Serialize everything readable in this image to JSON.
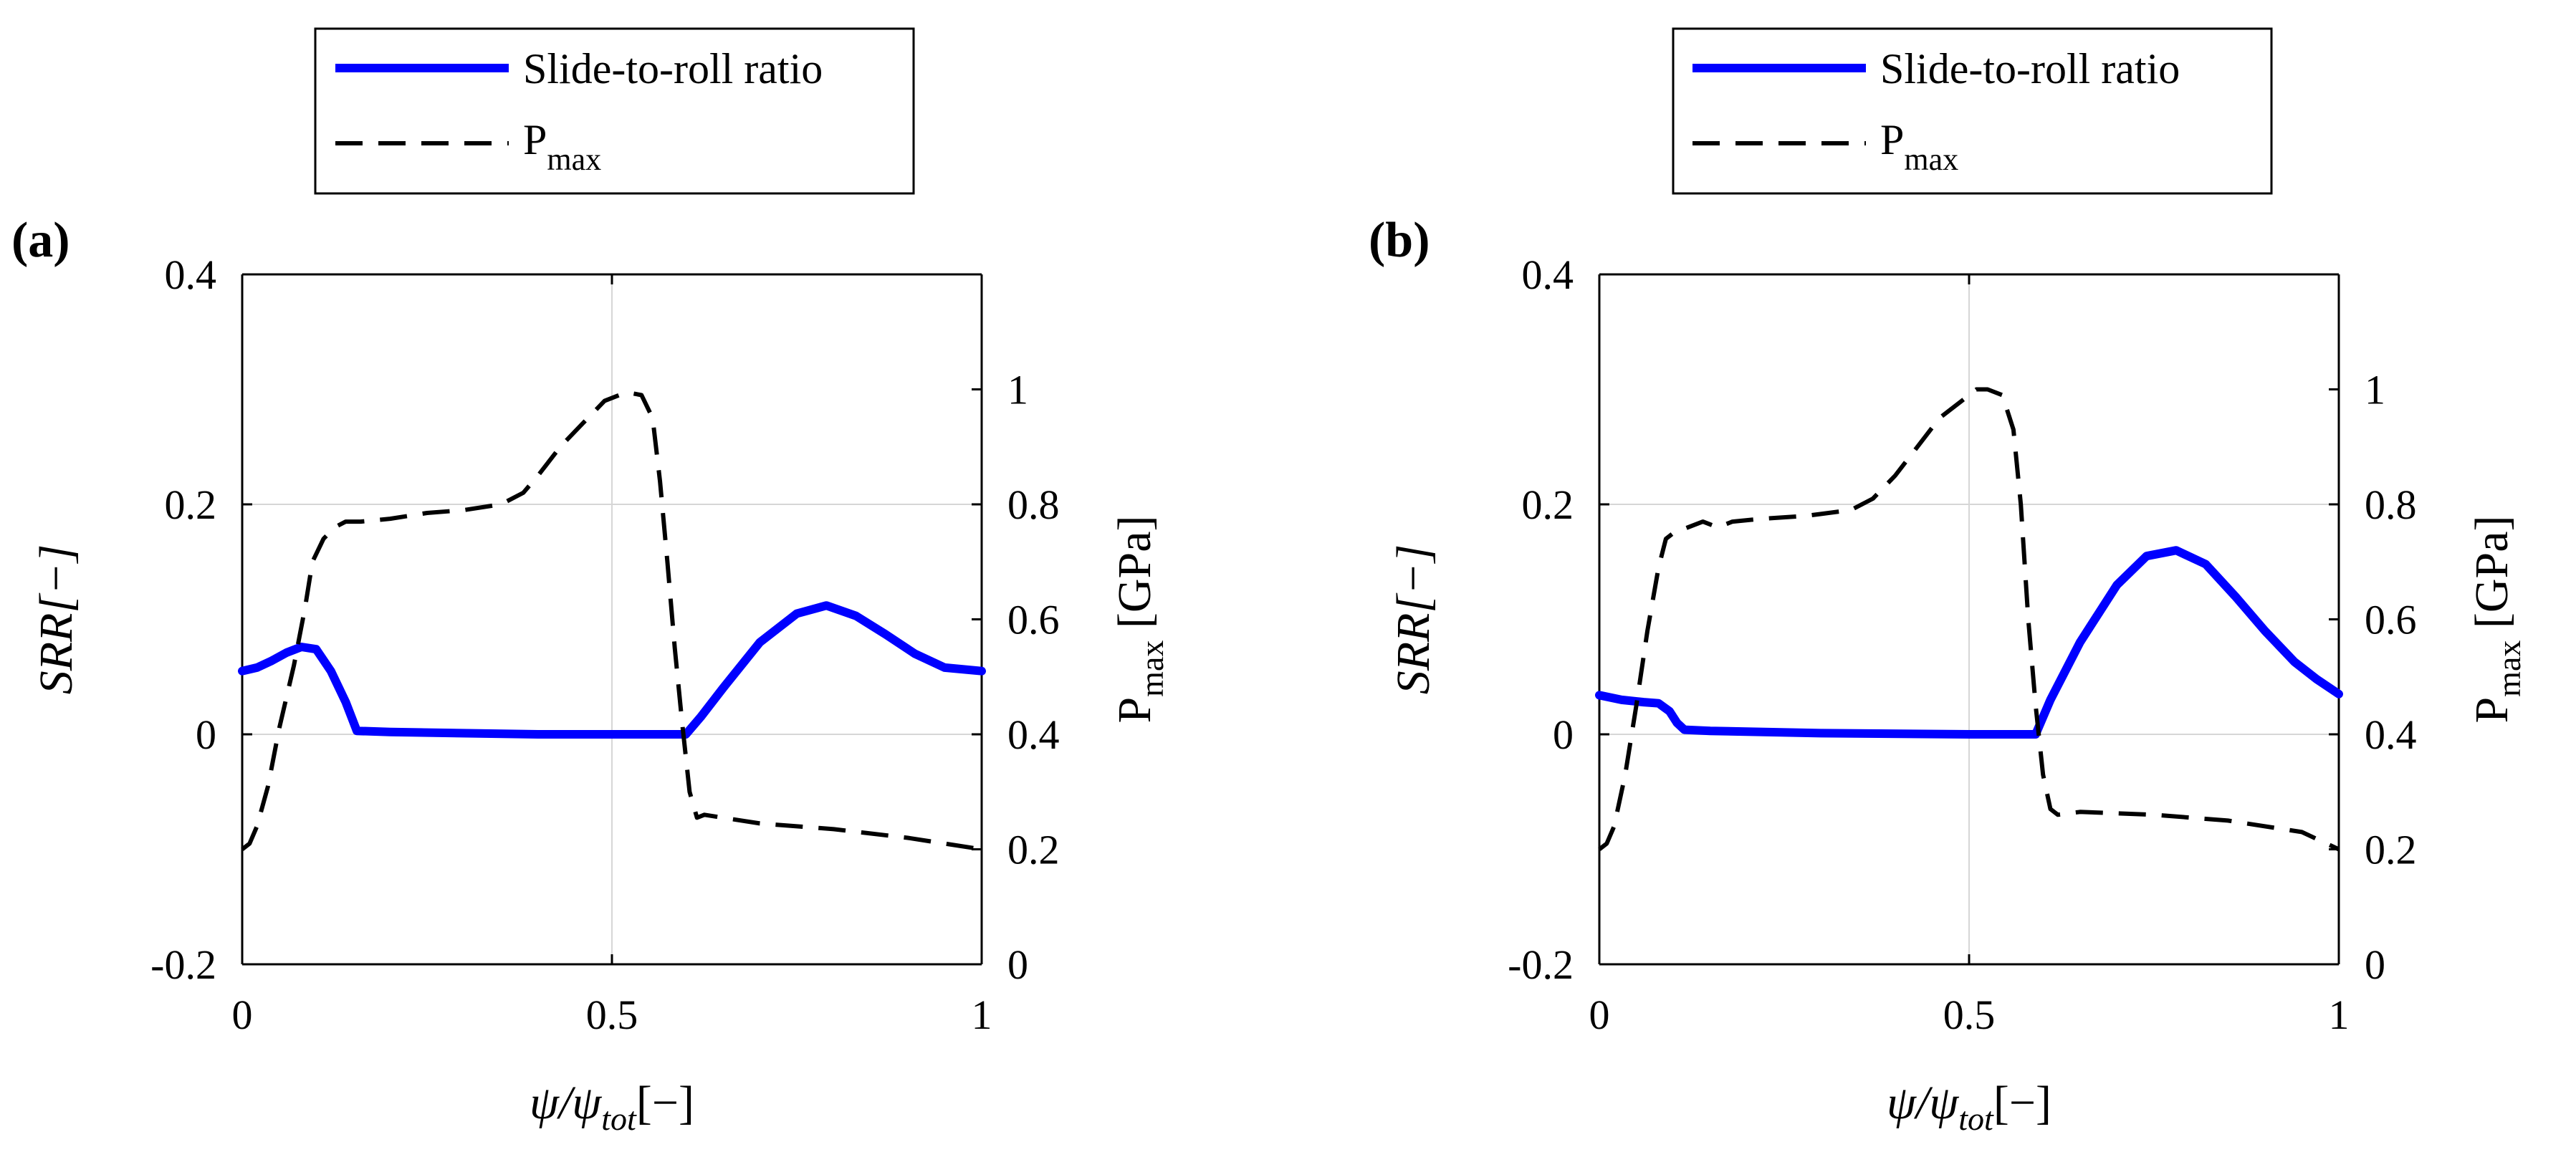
{
  "figure": {
    "legend": {
      "entries": [
        {
          "name": "Slide-to-roll ratio",
          "color": "#0000ff",
          "style": "solid"
        },
        {
          "name_main": "P",
          "name_sub": "max",
          "color": "#000000",
          "style": "dashed"
        }
      ]
    }
  },
  "chart_data": [
    {
      "type": "line",
      "panel_label": "(a)",
      "xlabel": {
        "main": "ψ/ψ",
        "sub": "tot",
        "suffix": "[−]"
      },
      "ylabel_left": "SRR[−]",
      "ylabel_right": {
        "main": "P",
        "sub": "max",
        "suffix": " [GPa]"
      },
      "xlim": [
        0,
        1
      ],
      "ylim_left": [
        -0.2,
        0.4
      ],
      "ylim_right": [
        0,
        1.2
      ],
      "x_ticks": [
        0,
        0.5,
        1
      ],
      "x_tick_labels": [
        "0",
        "0.5",
        "1"
      ],
      "y_left_ticks": [
        -0.2,
        0,
        0.2,
        0.4
      ],
      "y_left_tick_labels": [
        "-0.2",
        "0",
        "0.2",
        "0.4"
      ],
      "y_right_ticks": [
        0,
        0.2,
        0.4,
        0.6,
        0.8,
        1
      ],
      "y_right_tick_labels": [
        "0",
        "0.2",
        "0.4",
        "0.6",
        "0.8",
        "1"
      ],
      "grid": true,
      "series": [
        {
          "name": "Slide-to-roll ratio",
          "axis": "left",
          "color": "#0000ff",
          "x": [
            0,
            0.02,
            0.04,
            0.06,
            0.08,
            0.1,
            0.12,
            0.14,
            0.155,
            0.2,
            0.4,
            0.6,
            0.62,
            0.65,
            0.7,
            0.75,
            0.79,
            0.83,
            0.87,
            0.91,
            0.95,
            1.0
          ],
          "y": [
            0.055,
            0.058,
            0.064,
            0.071,
            0.076,
            0.074,
            0.055,
            0.028,
            0.003,
            0.002,
            0.0,
            0.0,
            0.015,
            0.04,
            0.08,
            0.105,
            0.112,
            0.103,
            0.087,
            0.07,
            0.058,
            0.055
          ]
        },
        {
          "name": "P_max",
          "axis": "right",
          "color": "#000000",
          "x": [
            0,
            0.01,
            0.02,
            0.035,
            0.05,
            0.07,
            0.085,
            0.095,
            0.11,
            0.125,
            0.14,
            0.16,
            0.2,
            0.25,
            0.3,
            0.35,
            0.38,
            0.4,
            0.43,
            0.46,
            0.49,
            0.51,
            0.52,
            0.54,
            0.555,
            0.565,
            0.575,
            0.585,
            0.595,
            0.605,
            0.615,
            0.625,
            0.65,
            0.7,
            0.8,
            0.9,
            1.0
          ],
          "y": [
            0.2,
            0.21,
            0.24,
            0.31,
            0.41,
            0.52,
            0.62,
            0.7,
            0.74,
            0.76,
            0.77,
            0.77,
            0.775,
            0.785,
            0.79,
            0.8,
            0.82,
            0.85,
            0.9,
            0.94,
            0.98,
            0.99,
            0.995,
            0.99,
            0.95,
            0.84,
            0.7,
            0.55,
            0.42,
            0.3,
            0.255,
            0.26,
            0.255,
            0.245,
            0.235,
            0.22,
            0.2
          ]
        }
      ]
    },
    {
      "type": "line",
      "panel_label": "(b)",
      "xlabel": {
        "main": "ψ/ψ",
        "sub": "tot",
        "suffix": "[−]"
      },
      "ylabel_left": "SRR[−]",
      "ylabel_right": {
        "main": "P",
        "sub": "max",
        "suffix": " [GPa]"
      },
      "xlim": [
        0,
        1
      ],
      "ylim_left": [
        -0.2,
        0.4
      ],
      "ylim_right": [
        0,
        1.2
      ],
      "x_ticks": [
        0,
        0.5,
        1
      ],
      "x_tick_labels": [
        "0",
        "0.5",
        "1"
      ],
      "y_left_ticks": [
        -0.2,
        0,
        0.2,
        0.4
      ],
      "y_left_tick_labels": [
        "-0.2",
        "0",
        "0.2",
        "0.4"
      ],
      "y_right_ticks": [
        0,
        0.2,
        0.4,
        0.6,
        0.8,
        1
      ],
      "y_right_tick_labels": [
        "0",
        "0.2",
        "0.4",
        "0.6",
        "0.8",
        "1"
      ],
      "grid": true,
      "series": [
        {
          "name": "Slide-to-roll ratio",
          "axis": "left",
          "color": "#0000ff",
          "x": [
            0,
            0.03,
            0.06,
            0.08,
            0.095,
            0.105,
            0.115,
            0.15,
            0.3,
            0.5,
            0.59,
            0.61,
            0.65,
            0.7,
            0.74,
            0.78,
            0.82,
            0.86,
            0.9,
            0.94,
            0.97,
            1.0
          ],
          "y": [
            0.034,
            0.03,
            0.028,
            0.027,
            0.02,
            0.01,
            0.004,
            0.003,
            0.001,
            0.0,
            0.0,
            0.03,
            0.08,
            0.13,
            0.155,
            0.16,
            0.148,
            0.12,
            0.09,
            0.063,
            0.048,
            0.035
          ]
        },
        {
          "name": "P_max",
          "axis": "right",
          "color": "#000000",
          "x": [
            0,
            0.01,
            0.02,
            0.035,
            0.05,
            0.065,
            0.08,
            0.09,
            0.1,
            0.12,
            0.14,
            0.16,
            0.18,
            0.22,
            0.28,
            0.34,
            0.37,
            0.4,
            0.43,
            0.46,
            0.49,
            0.51,
            0.525,
            0.545,
            0.56,
            0.57,
            0.58,
            0.59,
            0.6,
            0.61,
            0.62,
            0.65,
            0.75,
            0.85,
            0.95,
            1.0
          ],
          "y": [
            0.2,
            0.21,
            0.24,
            0.33,
            0.45,
            0.58,
            0.69,
            0.74,
            0.75,
            0.76,
            0.77,
            0.76,
            0.77,
            0.775,
            0.78,
            0.79,
            0.81,
            0.85,
            0.9,
            0.95,
            0.98,
            1.0,
            1.0,
            0.99,
            0.93,
            0.8,
            0.6,
            0.45,
            0.33,
            0.27,
            0.26,
            0.265,
            0.26,
            0.25,
            0.23,
            0.2
          ]
        }
      ]
    }
  ]
}
